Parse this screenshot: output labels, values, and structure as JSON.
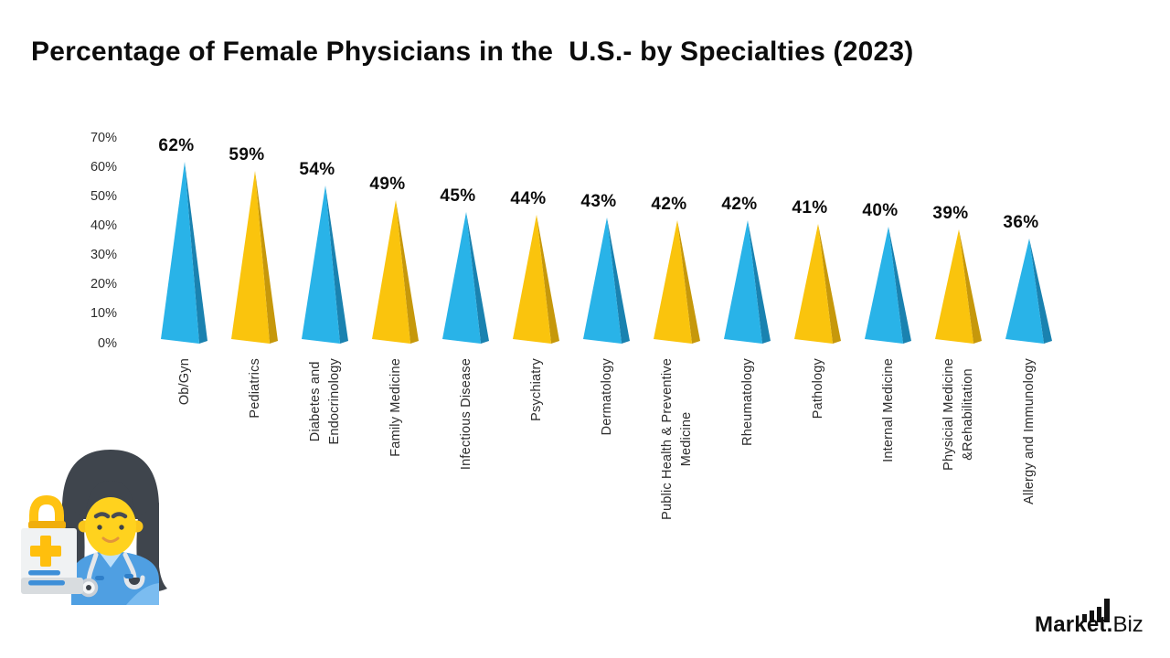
{
  "title": "Percentage of Female Physicians in the  U.S.- by Specialties (2023)",
  "chart_data": {
    "type": "bar",
    "style": "3d-pyramid-cones",
    "title": "Percentage of Female Physicians in the  U.S.- by Specialties (2023)",
    "categories": [
      "Ob/Gyn",
      "Pediatrics",
      "Diabetes and\nEndocrinology",
      "Family Medicine",
      "Infectious Disease",
      "Psychiatry",
      "Dermatology",
      "Public Health & Preventive\nMedicine",
      "Rheumatology",
      "Pathology",
      "Internal Medicine",
      "Physicial Medicine\n&Rehabilitation",
      "Allergy and Immunology"
    ],
    "values": [
      62,
      59,
      54,
      49,
      45,
      44,
      43,
      42,
      42,
      41,
      40,
      39,
      36
    ],
    "unit": "%",
    "ylim": [
      0,
      70
    ],
    "ytick_step": 10,
    "yticks": [
      "70%",
      "60%",
      "50%",
      "40%",
      "30%",
      "20%",
      "10%",
      "0%"
    ],
    "grid": false,
    "legend": "none",
    "colors": {
      "front": [
        "#29B3E8",
        "#FAC40D"
      ],
      "side": [
        "#1A82B0",
        "#C6980B"
      ],
      "pattern": "alternating-blue-yellow-starting-blue",
      "value_label": "#0b0b0b",
      "axis_text": "#2e2e2e"
    }
  },
  "branding": {
    "name_bold": "Market.",
    "name_light": "Biz"
  },
  "icons": {
    "logo_icon": "ascending-bar-chart"
  },
  "illustration": {
    "name": "female-doctor-with-medical-bag"
  }
}
